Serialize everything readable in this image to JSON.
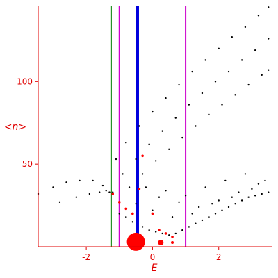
{
  "chart_data": {
    "type": "scatter",
    "title": "",
    "xlabel": "E",
    "ylabel": "<n>",
    "xlim": [
      -3.45,
      3.6
    ],
    "ylim": [
      0,
      146
    ],
    "x_ticks": [
      -2,
      0,
      2
    ],
    "y_ticks": [
      50,
      100
    ],
    "x_tick_labels": [
      "-2",
      "0",
      "2"
    ],
    "y_tick_labels": [
      "50",
      "100"
    ],
    "grid": false,
    "colors": {
      "axis": "#e00000",
      "points": "#000000",
      "highlight": "#ff0000",
      "green_line": "#008000",
      "magenta_line": "#cc00cc",
      "blue_line": "#0000dd"
    },
    "vertical_lines": [
      {
        "x": -1.25,
        "color": "green"
      },
      {
        "x": -1.0,
        "color": "magenta"
      },
      {
        "x": -0.45,
        "color": "blue"
      },
      {
        "x": 1.0,
        "color": "magenta"
      }
    ],
    "series": [
      {
        "id": "branch-1",
        "x": [
          -1.1,
          -0.8,
          -0.4,
          0.0,
          0.4,
          0.8,
          1.2,
          1.6,
          2.0,
          2.4,
          2.8,
          3.2,
          3.5
        ],
        "y": [
          53,
          63,
          73,
          82,
          90,
          98,
          106,
          113,
          120,
          127,
          133,
          140,
          145
        ]
      },
      {
        "id": "branch-2",
        "x": [
          -0.9,
          -0.5,
          -0.1,
          0.3,
          0.7,
          1.1,
          1.5,
          1.9,
          2.3,
          2.7,
          3.1,
          3.5
        ],
        "y": [
          44,
          53,
          62,
          70,
          78,
          86,
          93,
          100,
          106,
          113,
          119,
          126
        ]
      },
      {
        "id": "branch-3",
        "x": [
          -0.7,
          -0.3,
          0.1,
          0.5,
          0.9,
          1.3,
          1.7,
          2.1,
          2.5,
          2.9,
          3.3,
          3.5
        ],
        "y": [
          36,
          44,
          52,
          59,
          66,
          73,
          80,
          86,
          92,
          98,
          104,
          107
        ]
      },
      {
        "id": "branch-4",
        "x": [
          -3.45,
          -3.0,
          -2.6,
          -2.2,
          -1.8,
          -1.5,
          -1.3
        ],
        "y": [
          32,
          36,
          39,
          40,
          40,
          37,
          33
        ]
      },
      {
        "id": "branch-5",
        "x": [
          -2.8,
          -2.3,
          -1.9,
          -1.6,
          -1.4,
          -1.2
        ],
        "y": [
          27,
          30,
          32,
          33,
          34,
          33
        ]
      },
      {
        "id": "cloud",
        "x": [
          -1.0,
          -0.8,
          -0.6,
          -0.3,
          -0.1,
          0.1,
          0.3,
          0.5,
          0.7,
          0.9,
          1.1,
          1.3,
          1.5,
          1.7,
          1.9,
          2.1,
          2.3,
          2.5,
          2.7,
          2.9,
          3.1,
          3.3,
          3.5,
          -0.5,
          0.0,
          0.6,
          1.2,
          1.8,
          2.4,
          3.0,
          3.4,
          0.2,
          0.8,
          1.4,
          2.0,
          2.6,
          3.2,
          -0.2,
          0.4,
          1.0,
          1.6,
          2.2,
          2.8
        ],
        "y": [
          20,
          18,
          15,
          12,
          10,
          9,
          8,
          7,
          8,
          10,
          12,
          14,
          16,
          18,
          20,
          22,
          24,
          26,
          28,
          30,
          31,
          32,
          33,
          26,
          22,
          18,
          20,
          26,
          30,
          35,
          40,
          30,
          27,
          24,
          28,
          33,
          38,
          36,
          34,
          31,
          36,
          40,
          44
        ]
      },
      {
        "id": "red-highlight",
        "x": [
          -1.2,
          -1.0,
          -0.8,
          -0.6,
          -0.4,
          -0.3,
          0.0,
          0.2,
          0.4,
          0.6,
          -0.5
        ],
        "y": [
          32,
          27,
          23,
          20,
          35,
          55,
          20,
          10,
          8,
          6,
          3
        ]
      }
    ],
    "markers": [
      {
        "x": -0.5,
        "y": 3,
        "size": "large",
        "color": "red"
      },
      {
        "x": 0.25,
        "y": 2.5,
        "size": "medium",
        "color": "red"
      },
      {
        "x": 0.6,
        "y": 2.5,
        "size": "small",
        "color": "red"
      }
    ]
  }
}
